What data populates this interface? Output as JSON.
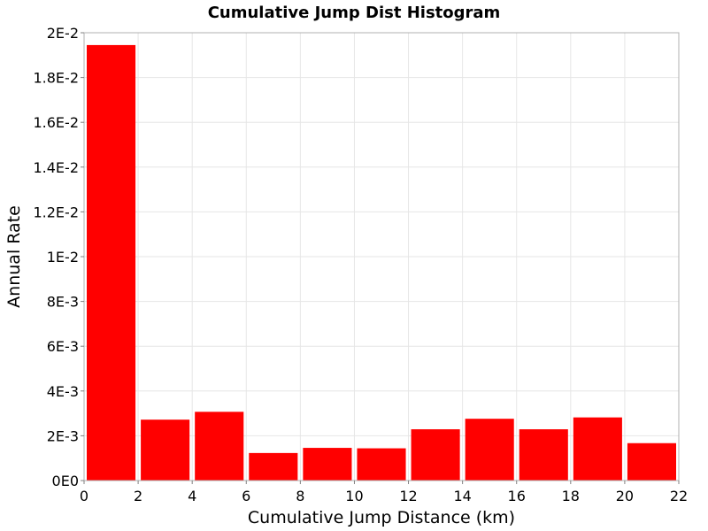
{
  "chart_data": {
    "type": "bar",
    "title": "Cumulative Jump Dist Histogram",
    "xlabel": "Cumulative Jump Distance (km)",
    "ylabel": "Annual Rate",
    "xlim": [
      0,
      22
    ],
    "ylim": [
      0,
      0.02
    ],
    "grid": true,
    "bar_color": "#ff0000",
    "bin_width": 2,
    "x": [
      1,
      3,
      5,
      7,
      9,
      11,
      13,
      15,
      17,
      19,
      21
    ],
    "values": [
      0.01945,
      0.00272,
      0.00307,
      0.00123,
      0.00146,
      0.00144,
      0.00229,
      0.00276,
      0.00229,
      0.00282,
      0.00167
    ],
    "x_ticks": [
      0,
      2,
      4,
      6,
      8,
      10,
      12,
      14,
      16,
      18,
      20,
      22
    ],
    "x_tick_labels": [
      "0",
      "2",
      "4",
      "6",
      "8",
      "10",
      "12",
      "14",
      "16",
      "18",
      "20",
      "22"
    ],
    "y_ticks": [
      0,
      0.002,
      0.004,
      0.006,
      0.008,
      0.01,
      0.012,
      0.014,
      0.016,
      0.018,
      0.02
    ],
    "y_tick_labels": [
      "0E0",
      "2E-3",
      "4E-3",
      "6E-3",
      "8E-3",
      "1E-2",
      "1.2E-2",
      "1.4E-2",
      "1.6E-2",
      "1.8E-2",
      "2E-2"
    ]
  }
}
